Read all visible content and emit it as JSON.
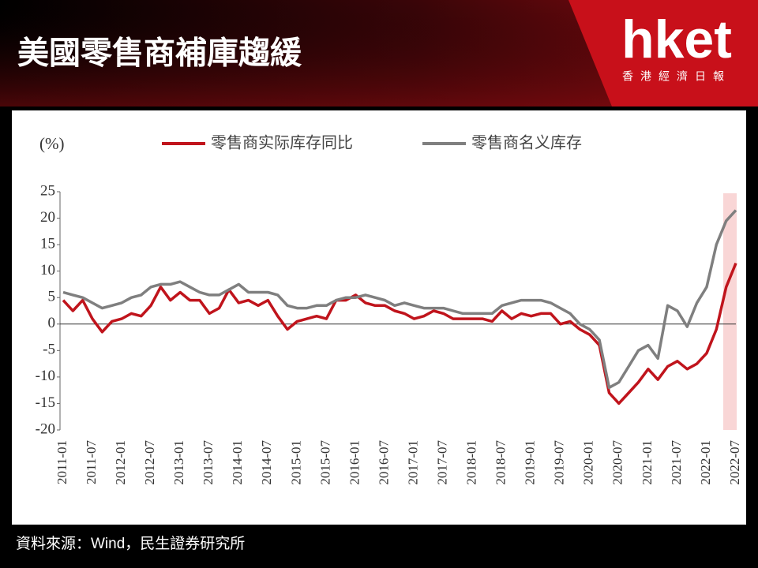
{
  "header": {
    "title": "美國零售商補庫趨緩",
    "logo": "hket",
    "logo_subtitle": "香港經濟日報"
  },
  "chart_data": {
    "type": "line",
    "y_label": "(%)",
    "x": [
      "2011-01",
      "2011-03",
      "2011-05",
      "2011-07",
      "2011-09",
      "2011-11",
      "2012-01",
      "2012-03",
      "2012-05",
      "2012-07",
      "2012-09",
      "2012-11",
      "2013-01",
      "2013-03",
      "2013-05",
      "2013-07",
      "2013-09",
      "2013-11",
      "2014-01",
      "2014-03",
      "2014-05",
      "2014-07",
      "2014-09",
      "2014-11",
      "2015-01",
      "2015-03",
      "2015-05",
      "2015-07",
      "2015-09",
      "2015-11",
      "2016-01",
      "2016-03",
      "2016-05",
      "2016-07",
      "2016-09",
      "2016-11",
      "2017-01",
      "2017-03",
      "2017-05",
      "2017-07",
      "2017-09",
      "2017-11",
      "2018-01",
      "2018-03",
      "2018-05",
      "2018-07",
      "2018-09",
      "2018-11",
      "2019-01",
      "2019-03",
      "2019-05",
      "2019-07",
      "2019-09",
      "2019-11",
      "2020-01",
      "2020-03",
      "2020-05",
      "2020-07",
      "2020-09",
      "2020-11",
      "2021-01",
      "2021-03",
      "2021-05",
      "2021-07",
      "2021-09",
      "2021-11",
      "2022-01",
      "2022-03",
      "2022-05",
      "2022-07"
    ],
    "series": [
      {
        "name": "零售商实际库存同比",
        "color": "#c0141c",
        "values": [
          4.5,
          2.5,
          4.5,
          1,
          -1.5,
          0.5,
          1,
          2,
          1.5,
          3.5,
          7,
          4.5,
          6,
          4.5,
          4.5,
          2,
          3,
          6.5,
          4,
          4.5,
          3.5,
          4.5,
          1.5,
          -1,
          0.5,
          1,
          1.5,
          1,
          4.5,
          4.5,
          5.5,
          4,
          3.5,
          3.5,
          2.5,
          2,
          1,
          1.5,
          2.5,
          2,
          1,
          1,
          1,
          1,
          0.5,
          2.5,
          1,
          2,
          1.5,
          2,
          2,
          0,
          0.5,
          -1,
          -2,
          -4,
          -13,
          -15,
          -13,
          -11,
          -8.5,
          -10.5,
          -8,
          -7,
          -8.5,
          -7.5,
          -5.5,
          -1,
          7,
          11.5
        ]
      },
      {
        "name": "零售商名义库存",
        "color": "#7f7f7f",
        "values": [
          6,
          5.5,
          5,
          4,
          3,
          3.5,
          4,
          5,
          5.5,
          7,
          7.5,
          7.5,
          8,
          7,
          6,
          5.5,
          5.5,
          6.5,
          7.5,
          6,
          6,
          6,
          5.5,
          3.5,
          3,
          3,
          3.5,
          3.5,
          4.5,
          5,
          5,
          5.5,
          5,
          4.5,
          3.5,
          4,
          3.5,
          3,
          3,
          3,
          2.5,
          2,
          2,
          2,
          2,
          3.5,
          4,
          4.5,
          4.5,
          4.5,
          4,
          3,
          2,
          0,
          -1,
          -3,
          -12,
          -11,
          -8,
          -5,
          -4,
          -6.5,
          3.5,
          2.5,
          -0.5,
          4,
          7,
          15,
          19.5,
          21.5
        ]
      }
    ],
    "ylim": [
      -20,
      25
    ],
    "yticks": [
      -20,
      -15,
      -10,
      -5,
      0,
      5,
      10,
      15,
      20,
      25
    ],
    "xticks": [
      "2011-01",
      "2011-07",
      "2012-01",
      "2012-07",
      "2013-01",
      "2013-07",
      "2014-01",
      "2014-07",
      "2015-01",
      "2015-07",
      "2016-01",
      "2016-07",
      "2017-01",
      "2017-07",
      "2018-01",
      "2018-07",
      "2019-01",
      "2019-07",
      "2020-01",
      "2020-07",
      "2021-01",
      "2021-07",
      "2022-01",
      "2022-07"
    ]
  },
  "footer": {
    "source": "資料來源：Wind，民生證券研究所"
  }
}
